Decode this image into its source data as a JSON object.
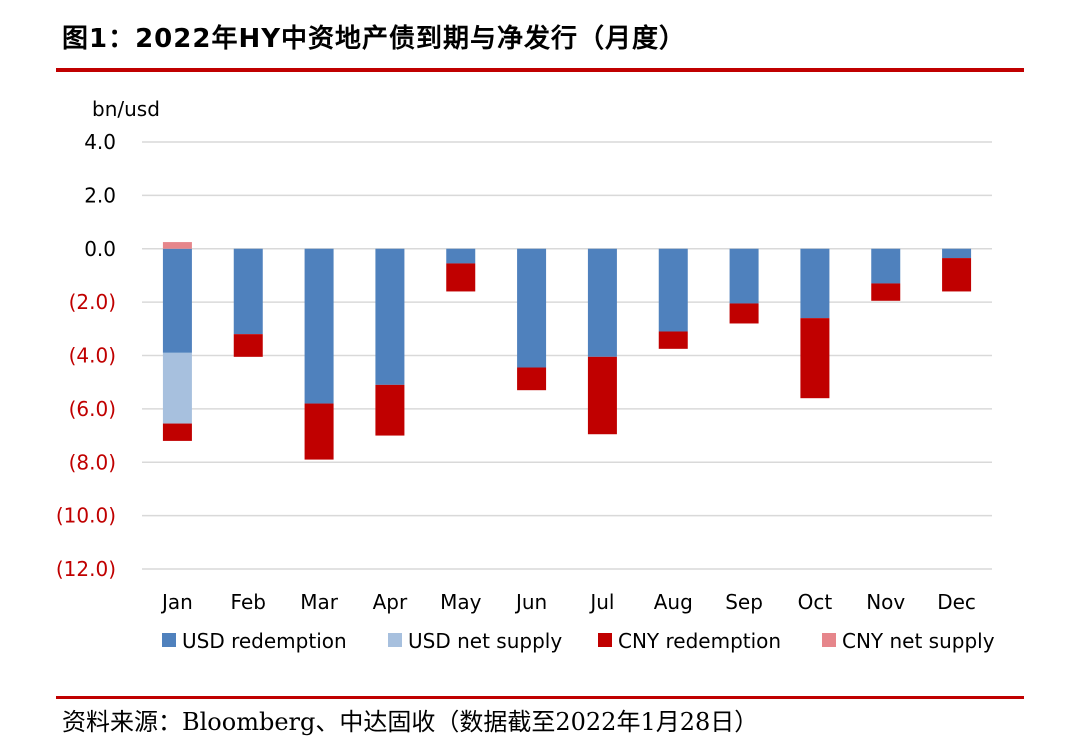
{
  "title": "图1：2022年HY中资地产债到期与净发行（月度）",
  "source": "资料来源：Bloomberg、中达固收（数据截至2022年1月28日）",
  "colors": {
    "rule": "#c00000",
    "negative_tick": "#c00000",
    "usd_redemption": "#4f81bd",
    "usd_net_supply": "#a7c0de",
    "cny_redemption": "#c00000",
    "cny_net_supply": "#e6868b",
    "grid": "#d9d9d9"
  },
  "chart_data": {
    "type": "bar",
    "stacked": true,
    "unit_label": "bn/usd",
    "ylim": [
      -12,
      4
    ],
    "ytick_values": [
      4,
      2,
      0,
      -2,
      -4,
      -6,
      -8,
      -10,
      -12
    ],
    "ytick_labels": [
      "4.0",
      "2.0",
      "0.0",
      "(2.0)",
      "(4.0)",
      "(6.0)",
      "(8.0)",
      "(10.0)",
      "(12.0)"
    ],
    "grid": true,
    "legend_position": "bottom",
    "categories": [
      "Jan",
      "Feb",
      "Mar",
      "Apr",
      "May",
      "Jun",
      "Jul",
      "Aug",
      "Sep",
      "Oct",
      "Nov",
      "Dec"
    ],
    "series": [
      {
        "name": "USD redemption",
        "color": "#4f81bd",
        "values": [
          -3.9,
          -3.2,
          -5.8,
          -5.1,
          -0.55,
          -4.45,
          -4.05,
          -3.1,
          -2.05,
          -2.6,
          -1.3,
          -0.35
        ]
      },
      {
        "name": "USD net supply",
        "color": "#a7c0de",
        "values": [
          -2.65,
          0,
          0,
          0,
          0,
          0,
          0,
          0,
          0,
          0,
          0,
          0
        ]
      },
      {
        "name": "CNY redemption",
        "color": "#c00000",
        "values": [
          -0.65,
          -0.85,
          -2.1,
          -1.9,
          -1.05,
          -0.85,
          -2.9,
          -0.65,
          -0.75,
          -3.0,
          -0.65,
          -1.25
        ]
      },
      {
        "name": "CNY net supply",
        "color": "#e6868b",
        "values": [
          0.25,
          0,
          0,
          0,
          0,
          0,
          0,
          0,
          0,
          0,
          0,
          0
        ]
      }
    ]
  }
}
